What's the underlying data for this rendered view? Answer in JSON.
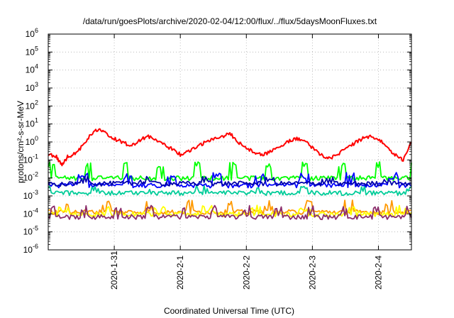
{
  "chart_data": {
    "type": "line",
    "title": "/data/run/goesPlots/archive/2020-02-04/12:00/flux/../flux/5daysMoonFluxes.txt",
    "ylabel": "protons/cm²-s-sr-MeV",
    "xlabel": "Coordinated Universal Time (UTC)",
    "yscale": "log",
    "ylim": [
      1e-06,
      1000000.0
    ],
    "yticks": [
      {
        "value": 1e-06,
        "base": "10",
        "exp": "-6"
      },
      {
        "value": 1e-05,
        "base": "10",
        "exp": "-5"
      },
      {
        "value": 0.0001,
        "base": "10",
        "exp": "-4"
      },
      {
        "value": 0.001,
        "base": "10",
        "exp": "-3"
      },
      {
        "value": 0.01,
        "base": "10",
        "exp": "-2"
      },
      {
        "value": 0.1,
        "base": "10",
        "exp": "-1"
      },
      {
        "value": 1,
        "base": "10",
        "exp": "0"
      },
      {
        "value": 10,
        "base": "10",
        "exp": "1"
      },
      {
        "value": 100,
        "base": "10",
        "exp": "2"
      },
      {
        "value": 1000,
        "base": "10",
        "exp": "3"
      },
      {
        "value": 10000,
        "base": "10",
        "exp": "4"
      },
      {
        "value": 100000,
        "base": "10",
        "exp": "5"
      },
      {
        "value": 1000000,
        "base": "10",
        "exp": "6"
      }
    ],
    "xlim": [
      "2020-01-30T00:00",
      "2020-02-04T12:00"
    ],
    "xticks": [
      {
        "value": "2020-01-31T00:00",
        "label": "2020-1-31"
      },
      {
        "value": "2020-02-01T00:00",
        "label": "2020-2-1"
      },
      {
        "value": "2020-02-02T00:00",
        "label": "2020-2-2"
      },
      {
        "value": "2020-02-03T00:00",
        "label": "2020-2-3"
      },
      {
        "value": "2020-02-04T00:00",
        "label": "2020-2-4"
      }
    ],
    "grid": true,
    "series": [
      {
        "color": "#ff0000",
        "style": "smooth",
        "x": [
          "2020-01-30T00:00",
          "2020-01-30T03:00",
          "2020-01-30T05:00",
          "2020-01-30T07:00",
          "2020-01-30T09:00",
          "2020-01-30T12:00",
          "2020-01-30T15:00",
          "2020-01-30T18:00",
          "2020-01-30T21:00",
          "2020-01-31T00:00",
          "2020-01-31T03:00",
          "2020-01-31T06:00",
          "2020-01-31T09:00",
          "2020-01-31T12:00",
          "2020-01-31T15:00",
          "2020-01-31T18:00",
          "2020-01-31T21:00",
          "2020-02-01T00:00",
          "2020-02-01T03:00",
          "2020-02-01T06:00",
          "2020-02-01T09:00",
          "2020-02-01T12:00",
          "2020-02-01T15:00",
          "2020-02-01T18:00",
          "2020-02-01T21:00",
          "2020-02-02T00:00",
          "2020-02-02T03:00",
          "2020-02-02T06:00",
          "2020-02-02T09:00",
          "2020-02-02T12:00",
          "2020-02-02T15:00",
          "2020-02-02T18:00",
          "2020-02-02T21:00",
          "2020-02-03T00:00",
          "2020-02-03T03:00",
          "2020-02-03T06:00",
          "2020-02-03T09:00",
          "2020-02-03T12:00",
          "2020-02-03T15:00",
          "2020-02-03T18:00",
          "2020-02-03T21:00",
          "2020-02-04T00:00",
          "2020-02-04T03:00",
          "2020-02-04T06:00",
          "2020-02-04T09:00",
          "2020-02-04T12:00"
        ],
        "values": [
          0.2,
          0.15,
          0.05,
          0.15,
          0.2,
          0.5,
          2,
          5,
          3,
          1.5,
          1,
          0.6,
          1.2,
          2,
          1.5,
          0.7,
          0.4,
          0.2,
          0.3,
          0.5,
          1,
          1.5,
          2,
          3,
          1,
          0.5,
          0.25,
          0.2,
          0.3,
          0.5,
          1,
          1.5,
          1.2,
          0.5,
          0.2,
          0.12,
          0.2,
          0.4,
          0.8,
          1.5,
          2,
          1.5,
          0.5,
          0.2,
          0.1,
          1
        ]
      },
      {
        "color": "#00ff00",
        "style": "spiky",
        "base": 0.01,
        "spike": 0.08,
        "period": 1.8
      },
      {
        "color": "#00cc99",
        "style": "spiky",
        "base": 0.0015,
        "spike": 0.004,
        "period": 2.6
      },
      {
        "color": "#0000ff",
        "style": "spiky",
        "base": 0.004,
        "spike": 0.02,
        "period": 2.2
      },
      {
        "color": "#0000aa",
        "style": "spiky",
        "base": 0.005,
        "spike": 0.012,
        "period": 3.0
      },
      {
        "color": "#ff9900",
        "style": "spiky",
        "base": 0.00013,
        "spike": 0.0006,
        "period": 2.0
      },
      {
        "color": "#ffff00",
        "style": "spiky",
        "base": 0.0001,
        "spike": 0.0003,
        "period": 2.4
      },
      {
        "color": "#8b2d6b",
        "style": "spiky",
        "base": 7e-05,
        "spike": 0.0003,
        "period": 1.6
      }
    ]
  }
}
